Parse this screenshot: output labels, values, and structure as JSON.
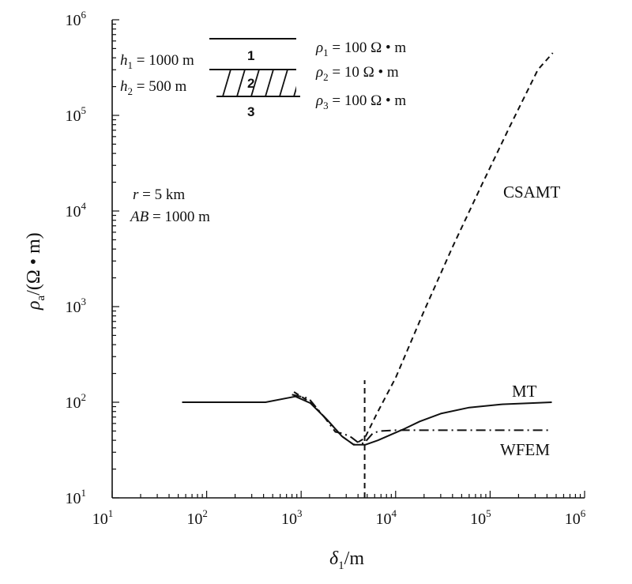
{
  "chart_data": {
    "type": "line",
    "x_scale": "log",
    "y_scale": "log",
    "xlim": [
      10,
      1000000
    ],
    "ylim": [
      10,
      1000000
    ],
    "xlabel": {
      "symbol": "δ",
      "sub": "1",
      "unit": "/m"
    },
    "ylabel": {
      "symbol": "ρ",
      "sub": "a",
      "unit": "/(Ω • m)"
    },
    "x_ticks": [
      {
        "base": "10",
        "exp": "1"
      },
      {
        "base": "10",
        "exp": "2"
      },
      {
        "base": "10",
        "exp": "3"
      },
      {
        "base": "10",
        "exp": "4"
      },
      {
        "base": "10",
        "exp": "5"
      },
      {
        "base": "10",
        "exp": "6"
      }
    ],
    "y_ticks": [
      {
        "base": "10",
        "exp": "1"
      },
      {
        "base": "10",
        "exp": "2"
      },
      {
        "base": "10",
        "exp": "3"
      },
      {
        "base": "10",
        "exp": "4"
      },
      {
        "base": "10",
        "exp": "5"
      },
      {
        "base": "10",
        "exp": "6"
      }
    ],
    "series": [
      {
        "name": "MT",
        "style": "solid",
        "x": [
          55,
          150,
          420,
          870,
          1250,
          1900,
          2700,
          3600,
          4800,
          6500,
          9000,
          12500,
          18000,
          30000,
          60000,
          130000,
          270000,
          450000
        ],
        "y": [
          100,
          100,
          100,
          115,
          98,
          65,
          44,
          36,
          36,
          40,
          46,
          53,
          63,
          76,
          88,
          95,
          98,
          100
        ]
      },
      {
        "name": "CSAMT",
        "style": "dashed",
        "x": [
          840,
          1250,
          1900,
          2700,
          3600,
          4700,
          6500,
          10000,
          20000,
          40000,
          80000,
          160000,
          320000,
          460000
        ],
        "y": [
          128,
          100,
          65,
          44,
          36,
          42,
          80,
          180,
          900,
          4200,
          18000,
          75000,
          300000,
          450000
        ]
      },
      {
        "name": "WFEM",
        "style": "dashdot",
        "x": [
          800,
          1200,
          1800,
          2300,
          2800,
          3400,
          4000,
          4600,
          5800,
          7000,
          10000,
          30000,
          100000,
          300000,
          450000
        ],
        "y": [
          120,
          110,
          68,
          49,
          47,
          43,
          38,
          37,
          48,
          50,
          51,
          51,
          51,
          51,
          51
        ]
      }
    ],
    "vertical_marker": {
      "x": 4700,
      "y_from": 10,
      "y_to": 170,
      "style": "dashed"
    },
    "annotations": {
      "r": {
        "sym": "r",
        "text": " = 5 km"
      },
      "ab": {
        "sym": "AB",
        "text": " = 1000 m"
      },
      "h1": {
        "sym": "h",
        "sub": "1",
        "text": " = 1000 m"
      },
      "h2": {
        "sym": "h",
        "sub": "2",
        "text": " = 500 m"
      },
      "rho1": {
        "sym": "ρ",
        "sub": "1",
        "text": " = 100 Ω • m"
      },
      "rho2": {
        "sym": "ρ",
        "sub": "2",
        "text": " = 10 Ω • m"
      },
      "rho3": {
        "sym": "ρ",
        "sub": "3",
        "text": " = 100 Ω • m"
      },
      "layer_numbers": [
        "1",
        "2",
        "3"
      ]
    },
    "grid": false,
    "legend": "inline labels"
  }
}
